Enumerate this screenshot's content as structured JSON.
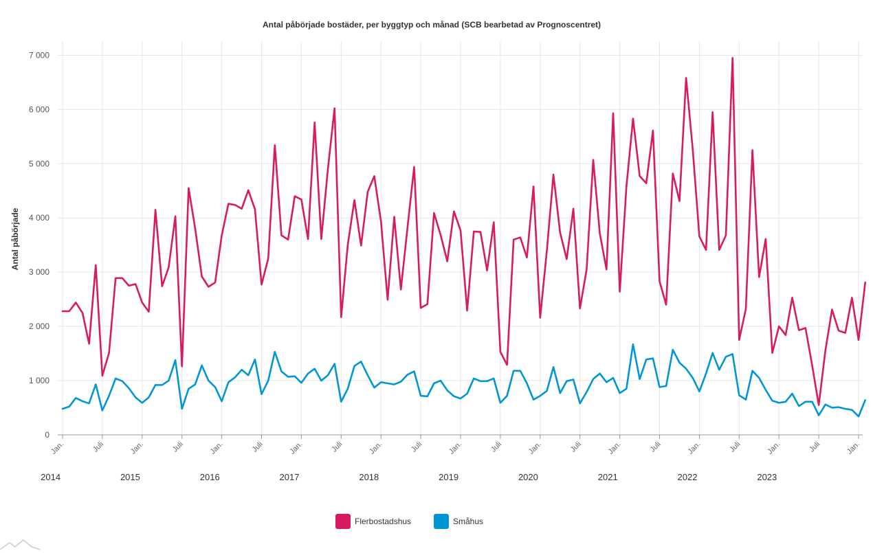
{
  "chart_data": {
    "type": "line",
    "title": "Antal påbörjade bostäder, per byggtyp och månad (SCB bearbetad av Prognoscentret)",
    "ylabel": "Antal påbörjade",
    "ylim": [
      0,
      7600
    ],
    "y_ticks": [
      0,
      1000,
      2000,
      3000,
      4000,
      5000,
      6000,
      7000
    ],
    "y_tick_labels": [
      "0",
      "1 000",
      "2 000",
      "3 000",
      "4 000",
      "5 000",
      "6 000",
      "7 000"
    ],
    "x_start": "2014-01",
    "x_end": "2024-02",
    "month_tick_labels": [
      "Jan.",
      "Juli"
    ],
    "years": [
      "2014",
      "2015",
      "2016",
      "2017",
      "2018",
      "2019",
      "2020",
      "2021",
      "2022",
      "2023"
    ],
    "grid": true,
    "legend_position": "bottom-center",
    "series": [
      {
        "name": "Flerbostadshus",
        "color": "#d81b60",
        "values": [
          2280,
          2280,
          2440,
          2250,
          1680,
          3130,
          1090,
          1510,
          2890,
          2890,
          2750,
          2780,
          2440,
          2270,
          4150,
          2740,
          3090,
          4030,
          1260,
          4550,
          3800,
          2920,
          2730,
          2810,
          3680,
          4260,
          4240,
          4170,
          4510,
          4160,
          2770,
          3250,
          5340,
          3680,
          3600,
          4400,
          4340,
          3610,
          5760,
          3610,
          4900,
          6020,
          2170,
          3500,
          4330,
          3490,
          4480,
          4770,
          3940,
          2490,
          4020,
          2680,
          3820,
          4940,
          2340,
          2410,
          4090,
          3680,
          3200,
          4120,
          3770,
          2290,
          3750,
          3740,
          3030,
          3920,
          1530,
          1290,
          3600,
          3640,
          3270,
          4580,
          2160,
          3390,
          4800,
          3730,
          3240,
          4170,
          2330,
          3050,
          5070,
          3710,
          3050,
          5930,
          2640,
          4580,
          5830,
          4770,
          4640,
          5610,
          2830,
          2400,
          4820,
          4310,
          6580,
          5260,
          3660,
          3410,
          5950,
          3410,
          3680,
          6950,
          1750,
          2320,
          5250,
          2910,
          3610,
          1510,
          2000,
          1840,
          2530,
          1930,
          1970,
          1280,
          550,
          1560,
          2310,
          1920,
          1880,
          2530,
          1750,
          2810
        ]
      },
      {
        "name": "Småhus",
        "color": "#0096d6",
        "values": [
          480,
          520,
          680,
          620,
          580,
          930,
          450,
          720,
          1040,
          990,
          860,
          690,
          590,
          690,
          920,
          920,
          1000,
          1380,
          480,
          850,
          930,
          1280,
          1000,
          880,
          620,
          970,
          1060,
          1200,
          1100,
          1390,
          750,
          1000,
          1530,
          1170,
          1070,
          1080,
          960,
          1130,
          1220,
          1000,
          1100,
          1310,
          610,
          850,
          1270,
          1350,
          1100,
          870,
          970,
          950,
          930,
          980,
          1110,
          1170,
          720,
          710,
          950,
          1000,
          820,
          710,
          670,
          760,
          1040,
          990,
          990,
          1040,
          590,
          720,
          1180,
          1180,
          950,
          650,
          720,
          810,
          1250,
          770,
          990,
          1020,
          580,
          790,
          1030,
          1130,
          970,
          1050,
          770,
          850,
          1670,
          1030,
          1390,
          1410,
          880,
          900,
          1570,
          1330,
          1220,
          1050,
          800,
          1130,
          1510,
          1200,
          1440,
          1490,
          730,
          650,
          1180,
          1050,
          830,
          630,
          590,
          610,
          760,
          530,
          610,
          610,
          360,
          560,
          500,
          510,
          480,
          460,
          340,
          640
        ]
      }
    ]
  }
}
